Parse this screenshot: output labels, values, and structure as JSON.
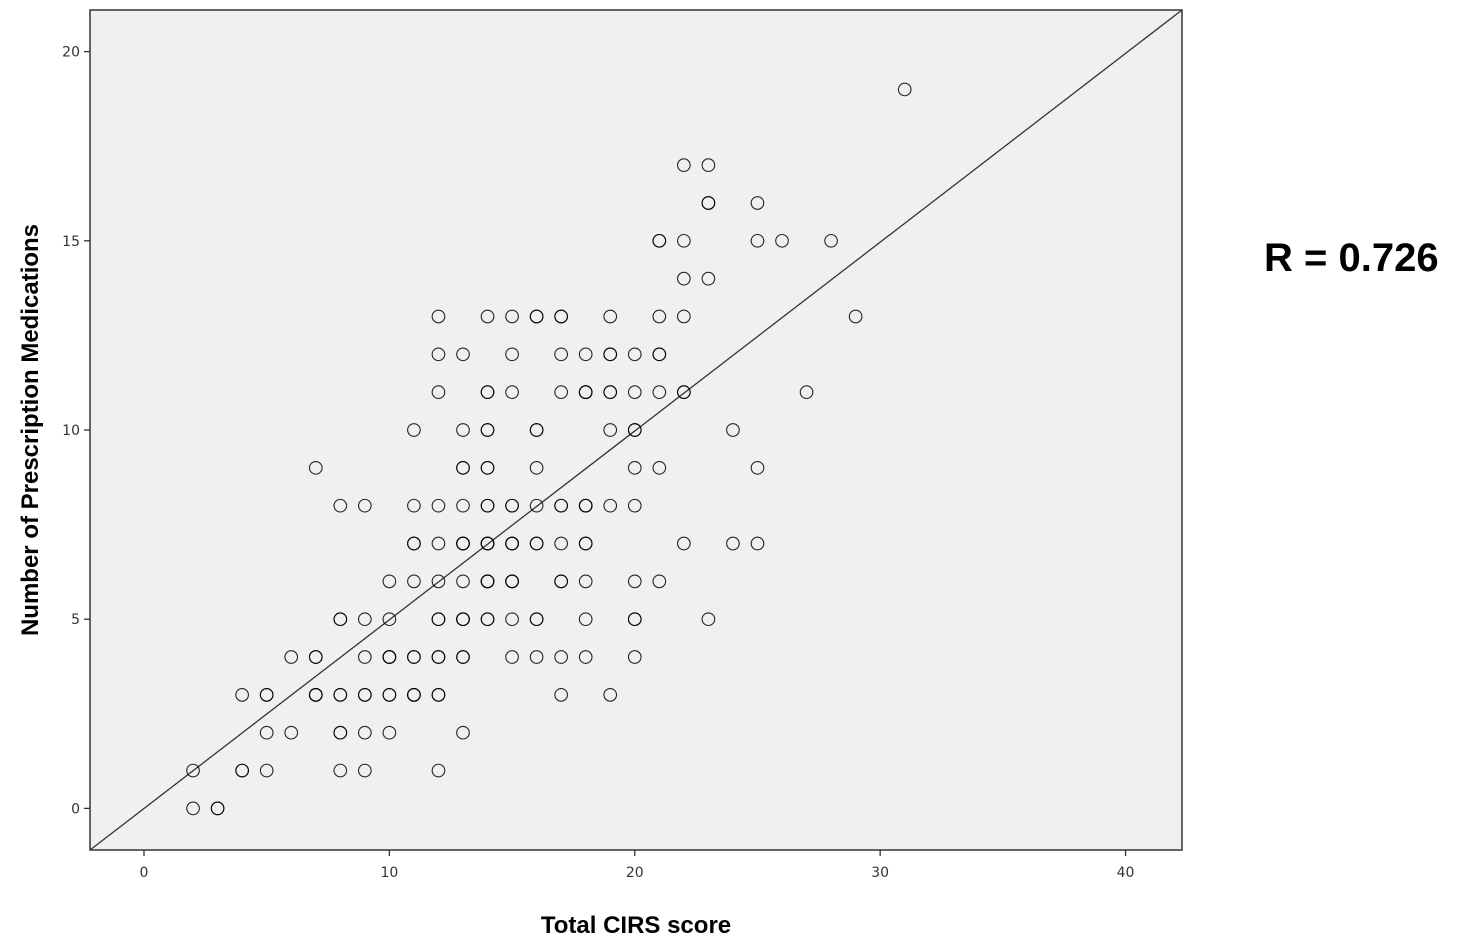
{
  "annotation": {
    "text": "R = 0.726"
  },
  "chart_data": {
    "type": "scatter",
    "xlabel": "Total CIRS score",
    "ylabel": "Number of Prescription Medications",
    "xlim": [
      -2.2,
      42.3
    ],
    "ylim": [
      -1.1,
      21.1
    ],
    "x_ticks": [
      0,
      10,
      20,
      30,
      40
    ],
    "y_ticks": [
      0,
      5,
      10,
      15,
      20
    ],
    "grid": false,
    "plot_background": "#f0f0f0",
    "marker_color": "#000000",
    "marker": "open-circle",
    "reference_line": {
      "type": "identity-fit",
      "from": [
        -2.2,
        -1.1
      ],
      "to": [
        42.3,
        21.1
      ]
    },
    "points": [
      [
        2,
        0
      ],
      [
        3,
        0
      ],
      [
        3,
        0
      ],
      [
        2,
        1
      ],
      [
        4,
        1
      ],
      [
        4,
        1
      ],
      [
        5,
        1
      ],
      [
        8,
        1
      ],
      [
        9,
        1
      ],
      [
        12,
        1
      ],
      [
        5,
        2
      ],
      [
        6,
        2
      ],
      [
        8,
        2
      ],
      [
        8,
        2
      ],
      [
        9,
        2
      ],
      [
        10,
        2
      ],
      [
        13,
        2
      ],
      [
        4,
        3
      ],
      [
        5,
        3
      ],
      [
        5,
        3
      ],
      [
        7,
        3
      ],
      [
        7,
        3
      ],
      [
        7,
        3
      ],
      [
        8,
        3
      ],
      [
        8,
        3
      ],
      [
        9,
        3
      ],
      [
        9,
        3
      ],
      [
        10,
        3
      ],
      [
        10,
        3
      ],
      [
        11,
        3
      ],
      [
        11,
        3
      ],
      [
        11,
        3
      ],
      [
        12,
        3
      ],
      [
        12,
        3
      ],
      [
        17,
        3
      ],
      [
        19,
        3
      ],
      [
        6,
        4
      ],
      [
        7,
        4
      ],
      [
        7,
        4
      ],
      [
        9,
        4
      ],
      [
        10,
        4
      ],
      [
        10,
        4
      ],
      [
        10,
        4
      ],
      [
        11,
        4
      ],
      [
        11,
        4
      ],
      [
        12,
        4
      ],
      [
        12,
        4
      ],
      [
        13,
        4
      ],
      [
        13,
        4
      ],
      [
        15,
        4
      ],
      [
        16,
        4
      ],
      [
        17,
        4
      ],
      [
        18,
        4
      ],
      [
        20,
        4
      ],
      [
        8,
        5
      ],
      [
        8,
        5
      ],
      [
        9,
        5
      ],
      [
        10,
        5
      ],
      [
        12,
        5
      ],
      [
        12,
        5
      ],
      [
        13,
        5
      ],
      [
        13,
        5
      ],
      [
        13,
        5
      ],
      [
        14,
        5
      ],
      [
        14,
        5
      ],
      [
        15,
        5
      ],
      [
        16,
        5
      ],
      [
        16,
        5
      ],
      [
        18,
        5
      ],
      [
        20,
        5
      ],
      [
        20,
        5
      ],
      [
        23,
        5
      ],
      [
        10,
        6
      ],
      [
        11,
        6
      ],
      [
        12,
        6
      ],
      [
        13,
        6
      ],
      [
        14,
        6
      ],
      [
        14,
        6
      ],
      [
        14,
        6
      ],
      [
        15,
        6
      ],
      [
        15,
        6
      ],
      [
        15,
        6
      ],
      [
        17,
        6
      ],
      [
        17,
        6
      ],
      [
        18,
        6
      ],
      [
        20,
        6
      ],
      [
        21,
        6
      ],
      [
        11,
        7
      ],
      [
        11,
        7
      ],
      [
        12,
        7
      ],
      [
        13,
        7
      ],
      [
        13,
        7
      ],
      [
        13,
        7
      ],
      [
        14,
        7
      ],
      [
        14,
        7
      ],
      [
        14,
        7
      ],
      [
        15,
        7
      ],
      [
        15,
        7
      ],
      [
        15,
        7
      ],
      [
        16,
        7
      ],
      [
        16,
        7
      ],
      [
        17,
        7
      ],
      [
        18,
        7
      ],
      [
        18,
        7
      ],
      [
        22,
        7
      ],
      [
        24,
        7
      ],
      [
        25,
        7
      ],
      [
        8,
        8
      ],
      [
        9,
        8
      ],
      [
        11,
        8
      ],
      [
        12,
        8
      ],
      [
        13,
        8
      ],
      [
        14,
        8
      ],
      [
        14,
        8
      ],
      [
        15,
        8
      ],
      [
        15,
        8
      ],
      [
        16,
        8
      ],
      [
        17,
        8
      ],
      [
        17,
        8
      ],
      [
        18,
        8
      ],
      [
        18,
        8
      ],
      [
        18,
        8
      ],
      [
        19,
        8
      ],
      [
        20,
        8
      ],
      [
        7,
        9
      ],
      [
        13,
        9
      ],
      [
        13,
        9
      ],
      [
        14,
        9
      ],
      [
        14,
        9
      ],
      [
        16,
        9
      ],
      [
        20,
        9
      ],
      [
        21,
        9
      ],
      [
        25,
        9
      ],
      [
        11,
        10
      ],
      [
        13,
        10
      ],
      [
        14,
        10
      ],
      [
        14,
        10
      ],
      [
        16,
        10
      ],
      [
        16,
        10
      ],
      [
        19,
        10
      ],
      [
        20,
        10
      ],
      [
        20,
        10
      ],
      [
        24,
        10
      ],
      [
        12,
        11
      ],
      [
        14,
        11
      ],
      [
        14,
        11
      ],
      [
        15,
        11
      ],
      [
        17,
        11
      ],
      [
        18,
        11
      ],
      [
        18,
        11
      ],
      [
        18,
        11
      ],
      [
        19,
        11
      ],
      [
        19,
        11
      ],
      [
        20,
        11
      ],
      [
        21,
        11
      ],
      [
        22,
        11
      ],
      [
        22,
        11
      ],
      [
        27,
        11
      ],
      [
        12,
        12
      ],
      [
        13,
        12
      ],
      [
        15,
        12
      ],
      [
        17,
        12
      ],
      [
        18,
        12
      ],
      [
        19,
        12
      ],
      [
        19,
        12
      ],
      [
        20,
        12
      ],
      [
        21,
        12
      ],
      [
        21,
        12
      ],
      [
        12,
        13
      ],
      [
        14,
        13
      ],
      [
        15,
        13
      ],
      [
        16,
        13
      ],
      [
        16,
        13
      ],
      [
        17,
        13
      ],
      [
        17,
        13
      ],
      [
        19,
        13
      ],
      [
        21,
        13
      ],
      [
        22,
        13
      ],
      [
        29,
        13
      ],
      [
        22,
        14
      ],
      [
        23,
        14
      ],
      [
        21,
        15
      ],
      [
        21,
        15
      ],
      [
        22,
        15
      ],
      [
        25,
        15
      ],
      [
        26,
        15
      ],
      [
        28,
        15
      ],
      [
        23,
        16
      ],
      [
        23,
        16
      ],
      [
        25,
        16
      ],
      [
        22,
        17
      ],
      [
        23,
        17
      ],
      [
        31,
        19
      ]
    ]
  }
}
